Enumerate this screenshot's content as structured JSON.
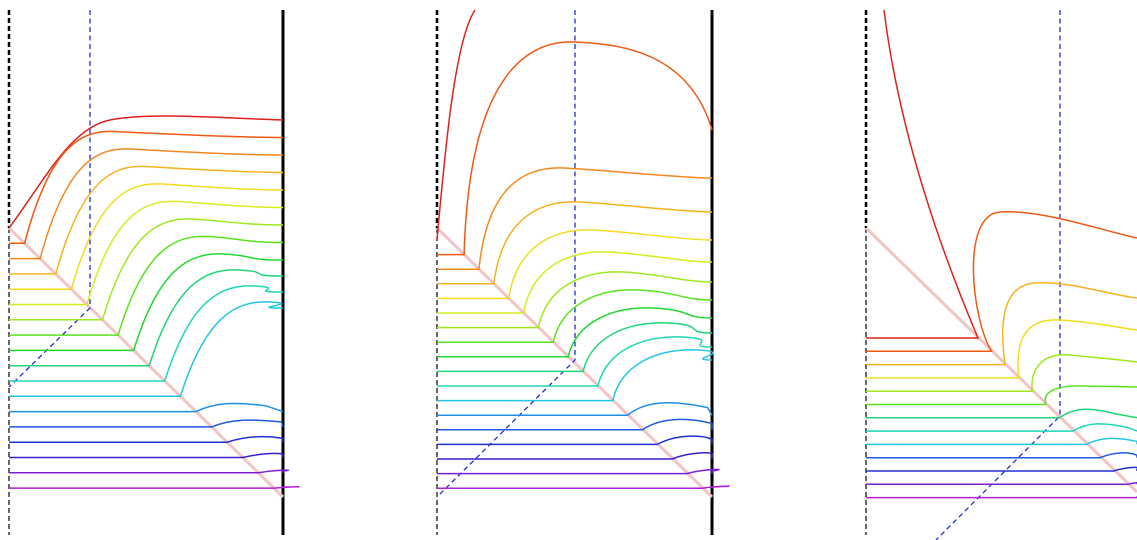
{
  "figure": {
    "panel_count": 3,
    "colors": {
      "background": "#ffffff",
      "wall": "#000000",
      "guide_dashed": "#1f2fd6",
      "diagonal": "#f4c3c3",
      "streamline_palette": [
        "#e0201a",
        "#ee5a12",
        "#f5891f",
        "#f6b21c",
        "#f2dc1e",
        "#d6ec1e",
        "#9fe81c",
        "#59e31e",
        "#20d830",
        "#1fd67a",
        "#1fd8b8",
        "#22c6e2",
        "#1f8fe6",
        "#1f58e0",
        "#1f2fd6",
        "#3a1fcf",
        "#7d1fd1",
        "#b21fd8"
      ]
    },
    "panels": [
      {
        "name": "panel-1",
        "streamline_count": 18
      },
      {
        "name": "panel-2",
        "streamline_count": 18
      },
      {
        "name": "panel-3",
        "streamline_count": 13
      }
    ]
  }
}
